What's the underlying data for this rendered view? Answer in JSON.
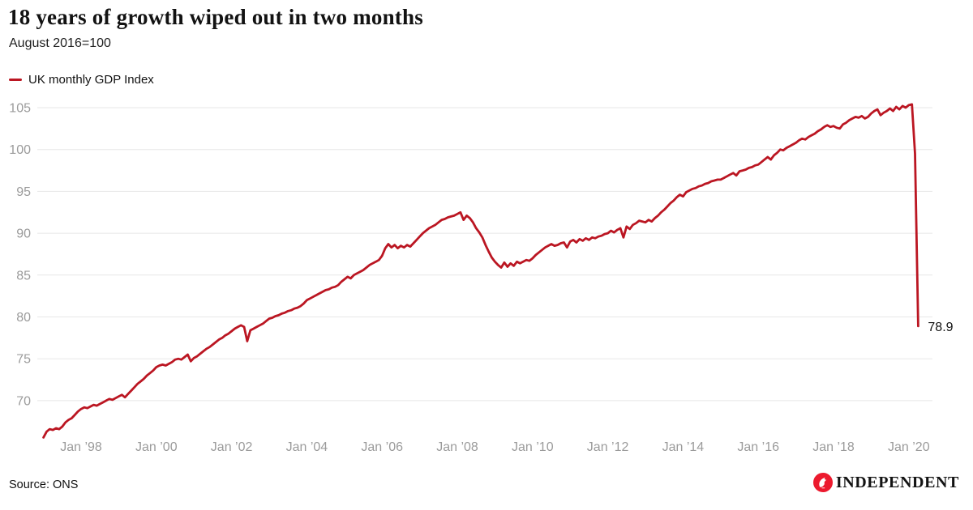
{
  "header": {
    "title": "18 years of growth wiped out in two months",
    "subtitle": "August 2016=100"
  },
  "legend": {
    "label": "UK monthly GDP Index"
  },
  "footer": {
    "source": "Source: ONS",
    "logo_text": "INDEPENDENT",
    "logo_icon": "eagle-icon"
  },
  "colors": {
    "line": "#bb1622",
    "logo_red": "#ec1a2e",
    "grid": "#e7e7e7",
    "tick": "#9b9b9b",
    "title_text": "#121212"
  },
  "chart_data": {
    "type": "line",
    "title": "18 years of growth wiped out in two months",
    "subtitle": "August 2016=100",
    "series_name": "UK monthly GDP Index",
    "frequency": "monthly",
    "start": "1997-01",
    "end": "2020-04",
    "xlabel": "",
    "ylabel": "",
    "ylim": [
      65,
      106.5
    ],
    "grid": "horizontal",
    "legend_position": "top-left",
    "y_ticks": [
      70,
      75,
      80,
      85,
      90,
      95,
      100,
      105
    ],
    "x_tick_labels": [
      "Jan ’98",
      "Jan ’00",
      "Jan ’02",
      "Jan ’04",
      "Jan ’06",
      "Jan ’08",
      "Jan ’10",
      "Jan ’12",
      "Jan ’14",
      "Jan ’16",
      "Jan ’18",
      "Jan ’20"
    ],
    "x_tick_month_index": [
      12,
      36,
      60,
      84,
      108,
      132,
      156,
      180,
      204,
      228,
      252,
      276
    ],
    "end_annotation": "78.9",
    "values": [
      65.6,
      66.3,
      66.6,
      66.5,
      66.7,
      66.6,
      66.9,
      67.4,
      67.7,
      67.9,
      68.3,
      68.7,
      69.0,
      69.2,
      69.1,
      69.3,
      69.5,
      69.4,
      69.6,
      69.8,
      70.0,
      70.2,
      70.1,
      70.3,
      70.5,
      70.7,
      70.4,
      70.8,
      71.2,
      71.6,
      72.0,
      72.3,
      72.6,
      73.0,
      73.3,
      73.6,
      74.0,
      74.2,
      74.3,
      74.2,
      74.4,
      74.6,
      74.9,
      75.0,
      74.9,
      75.2,
      75.5,
      74.7,
      75.1,
      75.3,
      75.6,
      75.9,
      76.2,
      76.4,
      76.7,
      77.0,
      77.3,
      77.5,
      77.8,
      78.0,
      78.3,
      78.6,
      78.8,
      79.0,
      78.8,
      77.1,
      78.4,
      78.6,
      78.8,
      79.0,
      79.2,
      79.5,
      79.8,
      79.9,
      80.1,
      80.2,
      80.4,
      80.5,
      80.7,
      80.8,
      81.0,
      81.1,
      81.3,
      81.6,
      82.0,
      82.2,
      82.4,
      82.6,
      82.8,
      83.0,
      83.2,
      83.3,
      83.5,
      83.6,
      83.8,
      84.2,
      84.5,
      84.8,
      84.6,
      85.0,
      85.2,
      85.4,
      85.6,
      85.9,
      86.2,
      86.4,
      86.6,
      86.8,
      87.3,
      88.2,
      88.7,
      88.3,
      88.6,
      88.2,
      88.5,
      88.3,
      88.6,
      88.4,
      88.8,
      89.2,
      89.6,
      90.0,
      90.3,
      90.6,
      90.8,
      91.0,
      91.3,
      91.6,
      91.7,
      91.9,
      92.0,
      92.1,
      92.3,
      92.5,
      91.6,
      92.1,
      91.8,
      91.3,
      90.6,
      90.1,
      89.5,
      88.6,
      87.8,
      87.1,
      86.6,
      86.2,
      85.9,
      86.5,
      86.0,
      86.4,
      86.1,
      86.6,
      86.4,
      86.6,
      86.8,
      86.7,
      87.0,
      87.4,
      87.7,
      88.0,
      88.3,
      88.5,
      88.7,
      88.5,
      88.6,
      88.8,
      88.9,
      88.3,
      89.0,
      89.2,
      88.9,
      89.3,
      89.1,
      89.4,
      89.2,
      89.5,
      89.4,
      89.6,
      89.7,
      89.9,
      90.0,
      90.3,
      90.1,
      90.4,
      90.6,
      89.5,
      90.8,
      90.5,
      91.0,
      91.2,
      91.5,
      91.4,
      91.3,
      91.6,
      91.4,
      91.8,
      92.1,
      92.5,
      92.8,
      93.2,
      93.6,
      93.9,
      94.3,
      94.6,
      94.4,
      94.9,
      95.1,
      95.3,
      95.4,
      95.6,
      95.7,
      95.9,
      96.0,
      96.2,
      96.3,
      96.4,
      96.4,
      96.6,
      96.8,
      97.0,
      97.2,
      96.9,
      97.4,
      97.5,
      97.6,
      97.8,
      97.9,
      98.1,
      98.2,
      98.5,
      98.8,
      99.1,
      98.8,
      99.3,
      99.6,
      100.0,
      99.9,
      100.2,
      100.4,
      100.6,
      100.8,
      101.1,
      101.3,
      101.2,
      101.5,
      101.7,
      101.9,
      102.2,
      102.4,
      102.7,
      102.9,
      102.7,
      102.8,
      102.6,
      102.5,
      103.0,
      103.2,
      103.5,
      103.7,
      103.9,
      103.8,
      104.0,
      103.7,
      103.9,
      104.3,
      104.6,
      104.8,
      104.1,
      104.4,
      104.6,
      104.9,
      104.6,
      105.1,
      104.8,
      105.2,
      105.0,
      105.3,
      105.4,
      99.5,
      78.9
    ]
  }
}
